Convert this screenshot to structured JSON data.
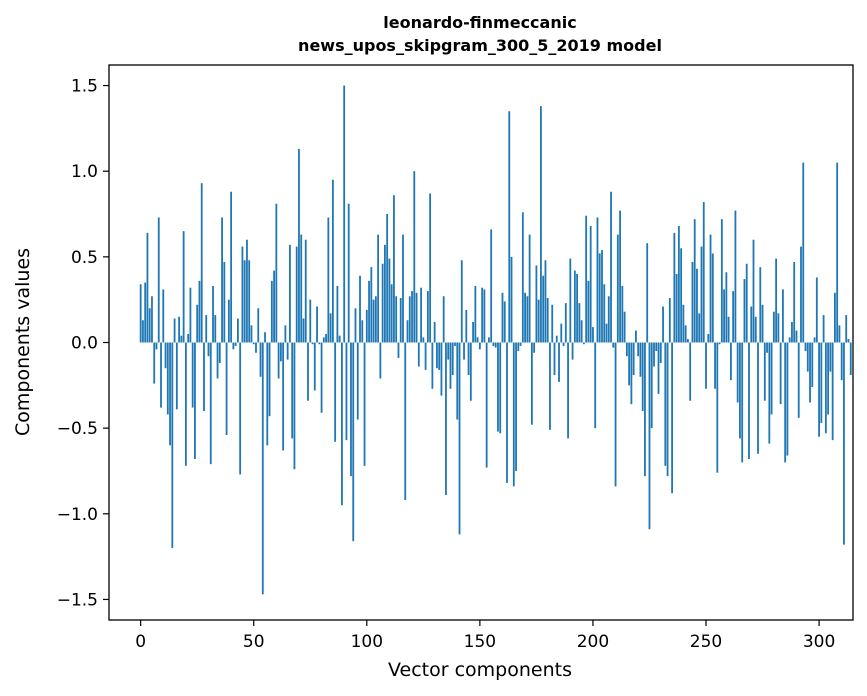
{
  "chart_data": {
    "type": "bar",
    "title_line1": "leonardo-finmeccanic",
    "title_line2": "news_upos_skipgram_300_5_2019 model",
    "xlabel": "Vector components",
    "ylabel": "Components values",
    "xlim": [
      -14,
      315
    ],
    "ylim": [
      -1.62,
      1.62
    ],
    "x_ticks": [
      0,
      50,
      100,
      150,
      200,
      250,
      300
    ],
    "y_ticks": [
      -1.5,
      -1.0,
      -0.5,
      0.0,
      0.5,
      1.0,
      1.5
    ],
    "y_tick_labels": [
      "−1.5",
      "−1.0",
      "−0.5",
      "0.0",
      "0.5",
      "1.0",
      "1.5"
    ],
    "grid": false,
    "legend": false,
    "bar_color": "#1f77b4",
    "values": [
      0.34,
      0.13,
      0.35,
      0.64,
      0.2,
      0.27,
      -0.24,
      -0.04,
      0.73,
      -0.38,
      0.31,
      -0.15,
      -0.42,
      -0.6,
      -1.2,
      0.14,
      -0.39,
      0.15,
      0.04,
      0.65,
      -0.72,
      0.05,
      0.32,
      -0.38,
      -0.68,
      0.22,
      0.36,
      0.93,
      -0.4,
      0.16,
      -0.08,
      -0.71,
      0.33,
      0.16,
      -0.21,
      -0.12,
      0.73,
      0.47,
      -0.54,
      0.25,
      0.88,
      -0.04,
      -0.02,
      0.14,
      -0.77,
      0.56,
      0.48,
      0.6,
      0.48,
      0.1,
      -0.01,
      -0.06,
      0.2,
      -0.2,
      -1.47,
      0.06,
      -0.6,
      -0.43,
      0.36,
      0.42,
      0.81,
      -0.21,
      -0.11,
      -0.63,
      0.1,
      -0.1,
      0.57,
      -0.56,
      -0.74,
      0.56,
      1.13,
      0.63,
      0.14,
      0.6,
      -0.34,
      0.25,
      -0.01,
      -0.28,
      0.21,
      -0.01,
      -0.41,
      0.03,
      0.05,
      0.73,
      0.17,
      0.95,
      -0.58,
      0.33,
      0.04,
      -0.95,
      1.5,
      -0.57,
      0.81,
      -0.78,
      -1.16,
      0.2,
      -0.45,
      0.39,
      0.13,
      -0.72,
      0.19,
      0.36,
      0.44,
      0.25,
      0.27,
      0.63,
      -0.21,
      0.46,
      0.57,
      0.75,
      0.49,
      0.34,
      0.86,
      0.27,
      -0.09,
      0.26,
      0.63,
      -0.92,
      0.13,
      0.27,
      0.3,
      1.0,
      0.29,
      -0.14,
      0.32,
      0.03,
      -0.16,
      0.3,
      0.87,
      -0.27,
      0.12,
      -0.15,
      -0.16,
      -0.31,
      0.27,
      -0.89,
      -0.1,
      -0.27,
      -0.19,
      -0.02,
      -0.45,
      -1.12,
      0.48,
      -0.1,
      0.19,
      -0.19,
      -0.34,
      0.12,
      0.33,
      0.03,
      -0.04,
      0.32,
      0.31,
      -0.73,
      0.03,
      0.66,
      -0.02,
      -0.03,
      -0.52,
      -0.53,
      0.29,
      0.24,
      -0.82,
      1.35,
      0.5,
      -0.84,
      -0.75,
      -0.05,
      -0.02,
      0.76,
      0.29,
      0.27,
      0.63,
      -0.48,
      -0.06,
      0.45,
      0.25,
      1.38,
      0.39,
      0.48,
      0.26,
      -0.51,
      0.22,
      -0.19,
      0.04,
      -0.23,
      0.11,
      -0.02,
      0.23,
      -0.56,
      0.49,
      -0.1,
      0.42,
      0.4,
      0.23,
      0.13,
      -0.01,
      0.74,
      0.36,
      0.68,
      0.09,
      -0.5,
      0.73,
      0.52,
      0.54,
      0.34,
      0.11,
      0.27,
      0.88,
      -0.03,
      -0.84,
      0.63,
      0.77,
      0.33,
      0.18,
      -0.08,
      -0.25,
      -0.36,
      -0.19,
      0.07,
      -0.08,
      -0.2,
      -0.4,
      -0.78,
      0.58,
      -1.09,
      -0.5,
      -0.14,
      -0.05,
      -0.3,
      -0.12,
      0.21,
      -0.72,
      -0.78,
      0.26,
      -0.88,
      0.64,
      0.4,
      0.68,
      0.55,
      0.22,
      0.1,
      0.02,
      -0.34,
      0.47,
      0.72,
      0.43,
      0.17,
      0.56,
      0.82,
      -0.27,
      0.05,
      0.63,
      0.52,
      -0.27,
      -0.76,
      -0.01,
      0.72,
      0.31,
      0.41,
      0.15,
      -0.22,
      0.3,
      0.77,
      -0.35,
      -0.56,
      -0.7,
      0.37,
      0.46,
      -0.68,
      0.21,
      0.6,
      0.15,
      -0.65,
      0.44,
      0.22,
      -0.34,
      -0.06,
      -0.59,
      -0.42,
      0.18,
      0.49,
      0.17,
      -0.36,
      0.31,
      -0.7,
      -0.66,
      0.03,
      0.12,
      0.47,
      0.07,
      -0.44,
      0.56,
      1.05,
      -0.05,
      -0.17,
      -0.35,
      -0.26,
      0.03,
      0.38,
      -0.55,
      -0.47,
      0.16,
      -0.53,
      -0.42,
      -0.17,
      -0.57,
      0.29,
      1.05,
      0.1,
      -0.22,
      -1.18,
      0.16,
      0.02,
      -0.19
    ]
  }
}
